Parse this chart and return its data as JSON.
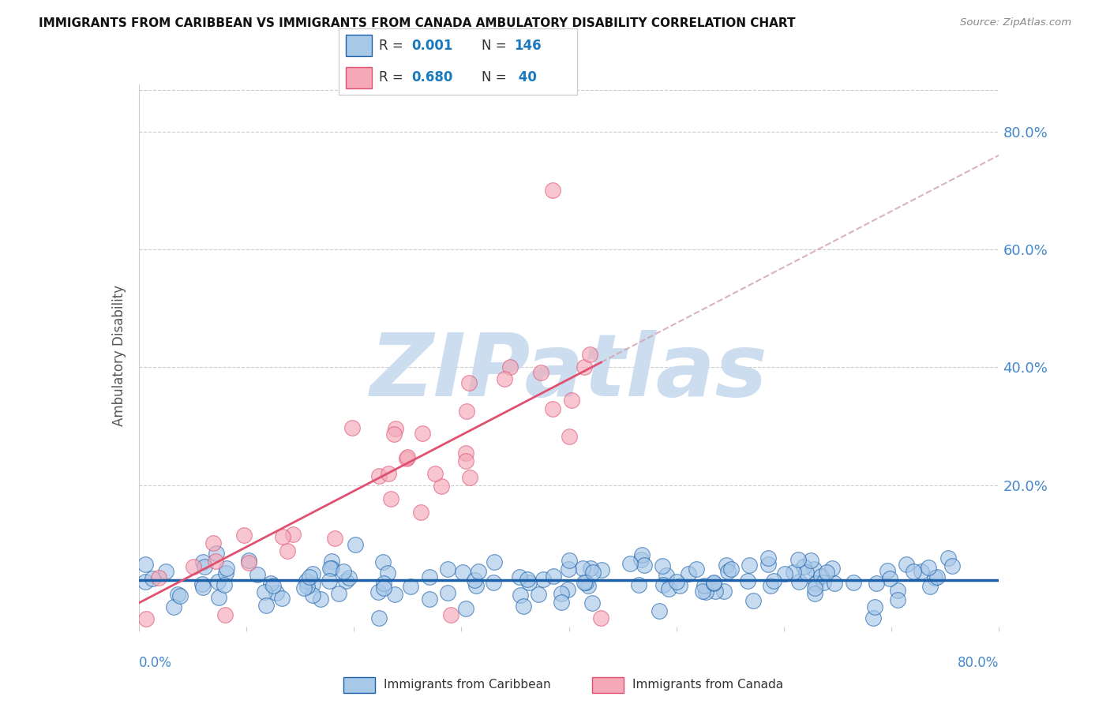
{
  "title": "IMMIGRANTS FROM CARIBBEAN VS IMMIGRANTS FROM CANADA AMBULATORY DISABILITY CORRELATION CHART",
  "source": "Source: ZipAtlas.com",
  "ylabel": "Ambulatory Disability",
  "ytick_labels": [
    "20.0%",
    "40.0%",
    "60.0%",
    "80.0%"
  ],
  "ytick_values": [
    0.2,
    0.4,
    0.6,
    0.8
  ],
  "xmin": 0.0,
  "xmax": 0.8,
  "ymin": -0.04,
  "ymax": 0.88,
  "r_caribbean": 0.001,
  "n_caribbean": 146,
  "r_canada": 0.68,
  "n_canada": 40,
  "color_caribbean": "#a8c8e8",
  "color_canada": "#f4a8b8",
  "color_caribbean_line": "#1a5fa8",
  "color_canada_line": "#e05070",
  "background_color": "#ffffff",
  "watermark_color": "#ccddf0",
  "watermark_text": "ZIPatlas",
  "title_fontsize": 11,
  "legend_r_color": "#1a7abd",
  "seed": 99
}
